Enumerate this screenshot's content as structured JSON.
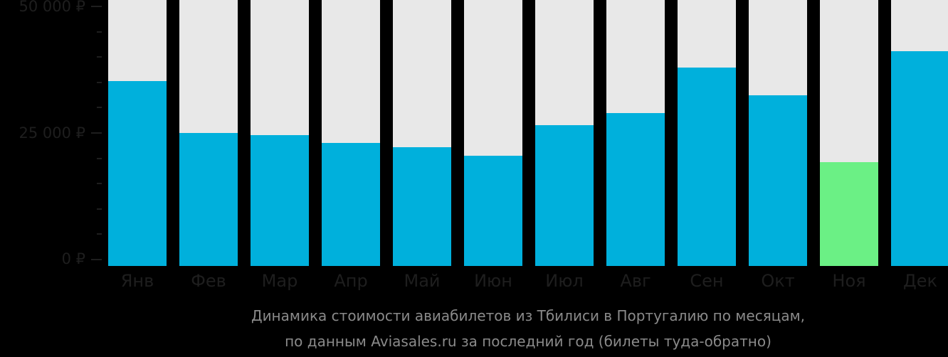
{
  "chart_data": {
    "type": "bar",
    "title": "Динамика стоимости авиабилетов из Тбилиси в Португалию по месяцам, по данным Aviasales.ru за последний год (билеты туда-обратно)",
    "xlabel": "",
    "ylabel": "",
    "ylim": [
      0,
      50000
    ],
    "yticks": [
      "0 ₽",
      "25 000 ₽",
      "50 000 ₽"
    ],
    "categories": [
      "Янв",
      "Фев",
      "Мар",
      "Апр",
      "Май",
      "Июн",
      "Июл",
      "Авг",
      "Сен",
      "Окт",
      "Ноя",
      "Дек"
    ],
    "values": [
      35100,
      24850,
      24430,
      22890,
      22040,
      20360,
      26400,
      28780,
      37770,
      32290,
      19090,
      41000
    ],
    "highlight_min": "Ноя",
    "grid": false,
    "legend": null
  },
  "colors": {
    "background": "#000000",
    "bar": "#00b0dc",
    "bar_min": "#6bf085",
    "bar_track": "#e8e8e8",
    "axis_text": "#1e1e1e",
    "caption_text": "#8a8a8a"
  },
  "caption": {
    "line1": "Динамика стоимости авиабилетов из Тбилиси в Португалию по месяцам,",
    "line2": "по данным Aviasales.ru за последний год (билеты туда-обратно)"
  }
}
